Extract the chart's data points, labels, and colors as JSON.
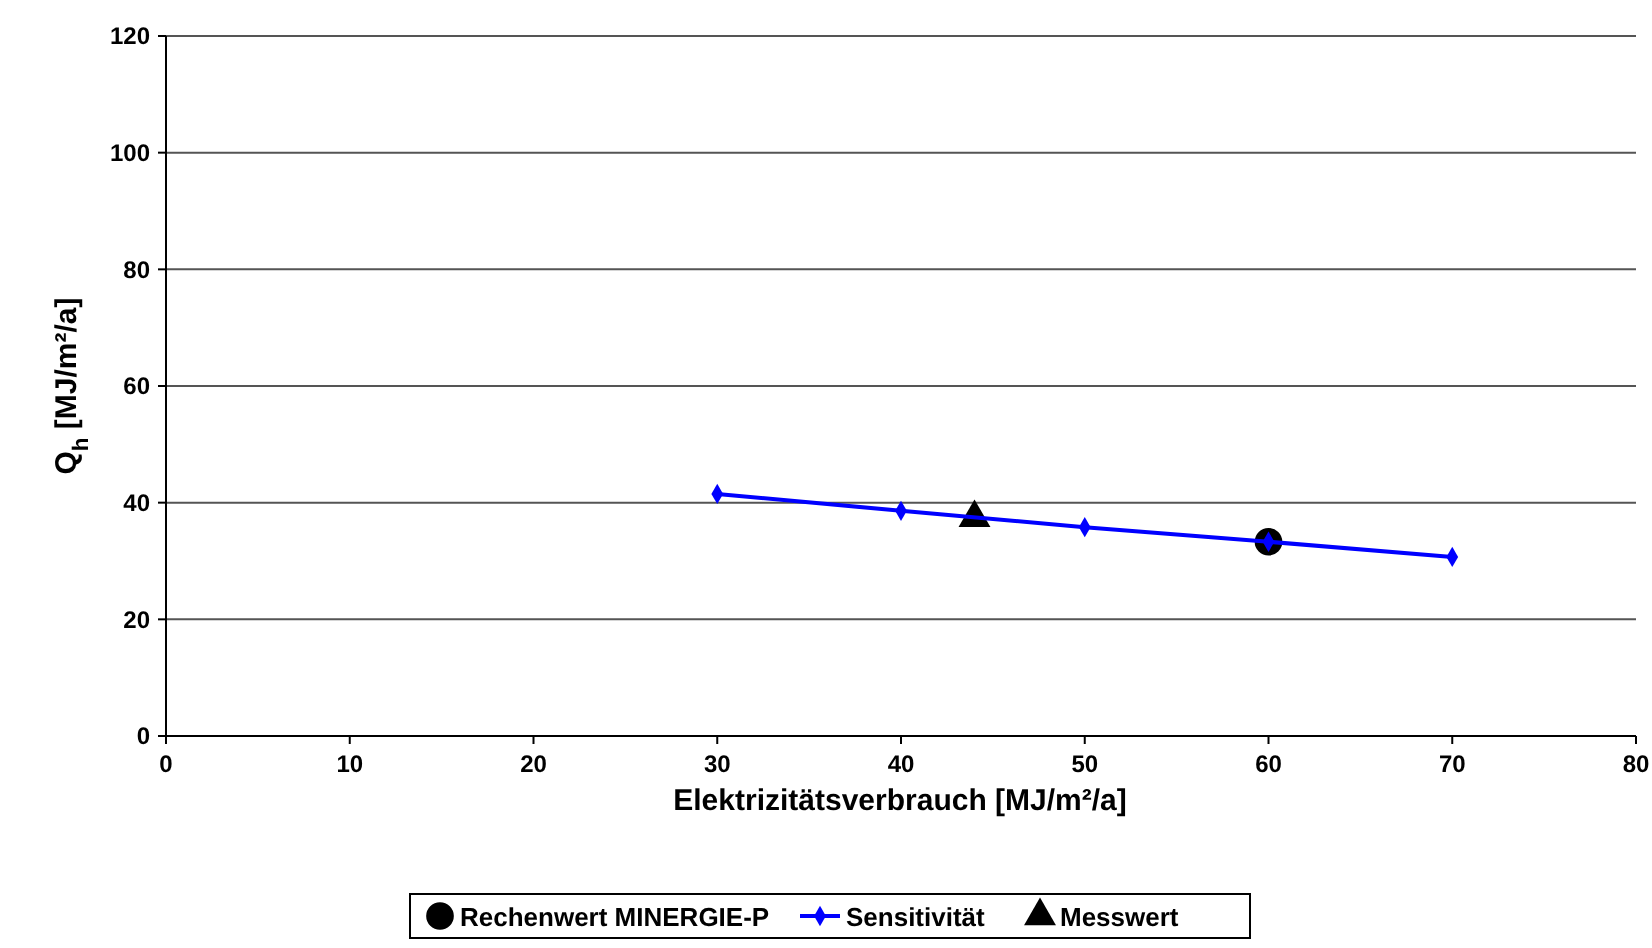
{
  "chart_data": {
    "type": "line",
    "xlabel": "Elektrizitätsverbrauch [MJ/m²/a]",
    "ylabel": "Q$_{h}$ [MJ/m²/a]",
    "xlim": [
      0,
      80
    ],
    "ylim": [
      0,
      120
    ],
    "xticks": [
      0,
      10,
      20,
      30,
      40,
      50,
      60,
      70,
      80
    ],
    "yticks": [
      0,
      20,
      40,
      60,
      80,
      100,
      120
    ],
    "grid": "y",
    "legend": "bottom",
    "series": [
      {
        "name": "Rechenwert MINERGIE-P",
        "type": "scatter",
        "marker": "circle",
        "color": "#000000",
        "x": [
          60
        ],
        "values": [
          33.3
        ]
      },
      {
        "name": "Sensitivität",
        "marker": "diamond",
        "color": "#0000ff",
        "x": [
          30,
          40,
          50,
          60,
          70
        ],
        "values": [
          41.5,
          38.6,
          35.8,
          33.3,
          30.7
        ]
      },
      {
        "name": "Messwert",
        "type": "scatter",
        "marker": "triangle",
        "color": "#000000",
        "x": [
          44
        ],
        "values": [
          37.4
        ]
      }
    ]
  }
}
